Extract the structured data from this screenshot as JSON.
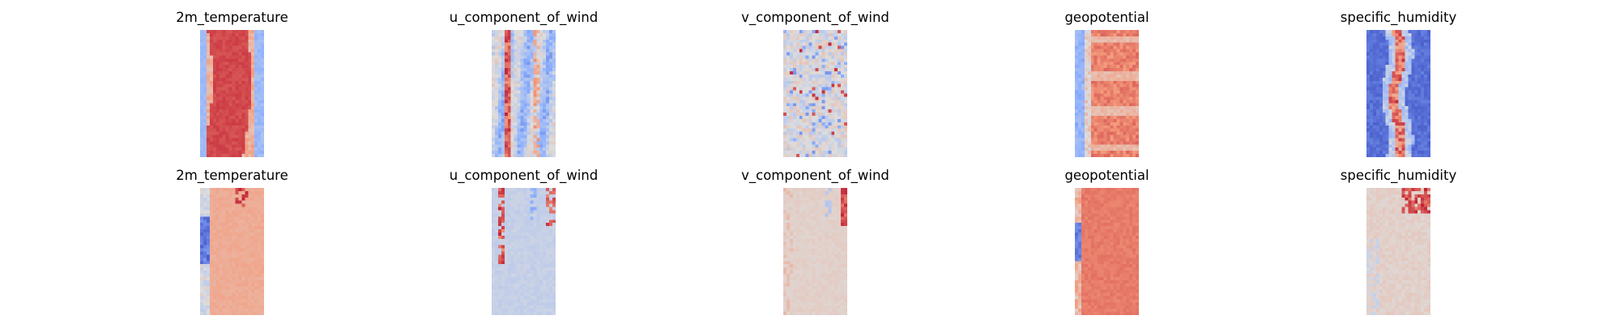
{
  "figure": {
    "rows": [
      "row-1",
      "row-2"
    ]
  },
  "chart_data": [
    {
      "type": "heatmap",
      "title": "2m_temperature",
      "colormap": "coolwarm",
      "grid": false,
      "axes": "off",
      "pattern": "warm_center_band",
      "vmin_color": "#3b4cc0",
      "vmax_color": "#b40426"
    },
    {
      "type": "heatmap",
      "title": "u_component_of_wind",
      "colormap": "coolwarm",
      "grid": false,
      "axes": "off",
      "pattern": "streaky_mixed"
    },
    {
      "type": "heatmap",
      "title": "v_component_of_wind",
      "colormap": "coolwarm",
      "grid": false,
      "axes": "off",
      "pattern": "noisy_neutral"
    },
    {
      "type": "heatmap",
      "title": "geopotential",
      "colormap": "coolwarm",
      "grid": false,
      "axes": "off",
      "pattern": "warm_with_cool_left_edge"
    },
    {
      "type": "heatmap",
      "title": "specific_humidity",
      "colormap": "coolwarm",
      "grid": false,
      "axes": "off",
      "pattern": "cool_with_warm_center_streak"
    },
    {
      "type": "heatmap",
      "title": "2m_temperature",
      "colormap": "coolwarm",
      "grid": false,
      "axes": "off",
      "pattern": "light_warm_with_cool_left"
    },
    {
      "type": "heatmap",
      "title": "u_component_of_wind",
      "colormap": "coolwarm",
      "grid": false,
      "axes": "off",
      "pattern": "pale_cool_with_top_speckle"
    },
    {
      "type": "heatmap",
      "title": "v_component_of_wind",
      "colormap": "coolwarm",
      "grid": false,
      "axes": "off",
      "pattern": "pale_neutral_with_top_right_speckle"
    },
    {
      "type": "heatmap",
      "title": "geopotential",
      "colormap": "coolwarm",
      "grid": false,
      "axes": "off",
      "pattern": "warm_with_cool_left_stripe"
    },
    {
      "type": "heatmap",
      "title": "specific_humidity",
      "colormap": "coolwarm",
      "grid": false,
      "axes": "off",
      "pattern": "pale_with_warm_top_right"
    }
  ]
}
